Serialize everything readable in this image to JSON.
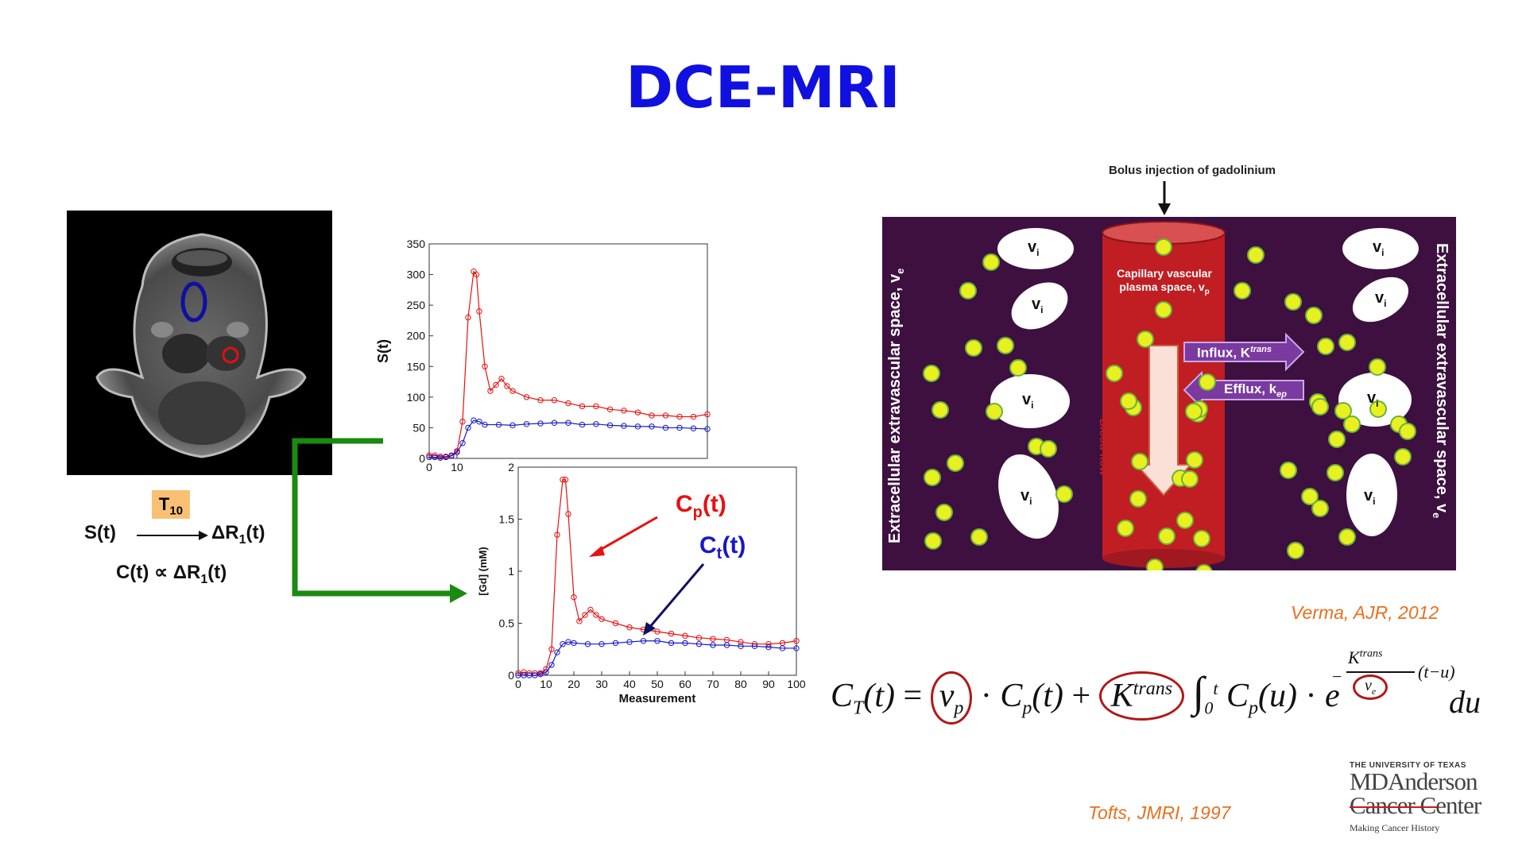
{
  "title": "DCE-MRI",
  "left_panel": {
    "t10_label": "T",
    "t10_sub": "10",
    "signal_eq": {
      "lhs": "S(t)",
      "rhs": "ΔR",
      "rhs_sub": "1",
      "rhs_tail": "(t)"
    },
    "proportional_eq": {
      "lhs": "C(t) ∝ ΔR",
      "sub": "1",
      "tail": "(t)"
    }
  },
  "colors": {
    "title": "#1010e0",
    "red": "#e81010",
    "blue": "#1818c8",
    "green": "#1a8a10",
    "citation": "#e8701e",
    "tissue": "#3d1040",
    "vessel": "#c01e22",
    "particle": "#e8f020"
  },
  "chart_data": [
    {
      "type": "line",
      "ylabel": "S(t)",
      "xlabel": "",
      "xticks": [
        "0",
        "10"
      ],
      "yticks": [
        "0",
        "50",
        "100",
        "150",
        "200",
        "250",
        "300",
        "350"
      ],
      "xlim": [
        0,
        100
      ],
      "ylim": [
        0,
        350
      ],
      "series": [
        {
          "name": "red",
          "color": "#e81010",
          "x": [
            0,
            2,
            4,
            6,
            8,
            10,
            12,
            14,
            16,
            17,
            18,
            20,
            22,
            24,
            26,
            28,
            30,
            35,
            40,
            45,
            50,
            55,
            60,
            65,
            70,
            75,
            80,
            85,
            90,
            95,
            100
          ],
          "values": [
            5,
            5,
            3,
            3,
            5,
            12,
            60,
            230,
            305,
            300,
            240,
            150,
            110,
            120,
            130,
            118,
            110,
            100,
            95,
            95,
            90,
            85,
            85,
            80,
            78,
            75,
            70,
            70,
            68,
            68,
            72
          ]
        },
        {
          "name": "blue",
          "color": "#1818c8",
          "x": [
            0,
            2,
            4,
            6,
            8,
            10,
            12,
            14,
            16,
            18,
            20,
            25,
            30,
            35,
            40,
            45,
            50,
            55,
            60,
            65,
            70,
            75,
            80,
            85,
            90,
            95,
            100
          ],
          "values": [
            2,
            2,
            1,
            2,
            4,
            10,
            25,
            50,
            62,
            60,
            55,
            55,
            54,
            56,
            57,
            58,
            58,
            55,
            56,
            54,
            53,
            52,
            52,
            50,
            50,
            49,
            48
          ]
        }
      ]
    },
    {
      "type": "line",
      "ylabel": "[Gd] (mM)",
      "xlabel": "Measurement",
      "xticks": [
        "0",
        "10",
        "20",
        "30",
        "40",
        "50",
        "60",
        "70",
        "80",
        "90",
        "100"
      ],
      "yticks": [
        "0",
        "0.5",
        "1",
        "1.5",
        "2"
      ],
      "xlim": [
        0,
        100
      ],
      "ylim": [
        0,
        2
      ],
      "series": [
        {
          "name": "C_p(t)",
          "color": "#e81010",
          "x": [
            0,
            2,
            4,
            6,
            8,
            10,
            12,
            14,
            16,
            17,
            18,
            20,
            22,
            24,
            26,
            28,
            30,
            35,
            40,
            45,
            50,
            55,
            60,
            65,
            70,
            75,
            80,
            85,
            90,
            95,
            100
          ],
          "values": [
            0.02,
            0.03,
            0.02,
            0.02,
            0.02,
            0.06,
            0.25,
            1.35,
            1.88,
            1.88,
            1.55,
            0.75,
            0.52,
            0.58,
            0.63,
            0.58,
            0.54,
            0.5,
            0.46,
            0.44,
            0.42,
            0.4,
            0.38,
            0.36,
            0.35,
            0.34,
            0.32,
            0.3,
            0.3,
            0.31,
            0.33
          ]
        },
        {
          "name": "C_t(t)",
          "color": "#1818c8",
          "x": [
            0,
            2,
            4,
            6,
            8,
            10,
            12,
            14,
            16,
            18,
            20,
            25,
            30,
            35,
            40,
            45,
            50,
            55,
            60,
            65,
            70,
            75,
            80,
            85,
            90,
            95,
            100
          ],
          "values": [
            0,
            0,
            0,
            0,
            0.01,
            0.03,
            0.1,
            0.22,
            0.3,
            0.32,
            0.31,
            0.3,
            0.3,
            0.31,
            0.32,
            0.33,
            0.33,
            0.31,
            0.31,
            0.3,
            0.29,
            0.29,
            0.28,
            0.28,
            0.27,
            0.26,
            0.26
          ]
        }
      ],
      "annotations": [
        {
          "text": "C",
          "sub": "p",
          "tail": "(t)",
          "color": "#e81010"
        },
        {
          "text": "C",
          "sub": "t",
          "tail": "(t)",
          "color": "#1818c8"
        }
      ]
    }
  ],
  "diagram": {
    "bolus_label": "Bolus injection of gadolinium",
    "left_side_label": "Extracellular extravascular space, v",
    "right_side_label": "Extracellular extravascular space, v",
    "side_sub": "e",
    "vessel_label_line1": "Capillary vascular",
    "vessel_label_line2": "plasma space, v",
    "vessel_sub": "p",
    "blood_flow": "Blood flow",
    "influx": "Influx, K",
    "influx_sup": "trans",
    "efflux": "Efflux, k",
    "efflux_sub": "ep",
    "cell_label": "v",
    "cell_sub": "i"
  },
  "citations": {
    "verma": "Verma, AJR, 2012",
    "tofts": "Tofts, JMRI, 1997"
  },
  "equation": {
    "c": "C",
    "c_sub": "T",
    "t_arg": "(t)",
    "eq": "=",
    "vp": "v",
    "vp_sub": "p",
    "dot": "·",
    "cp": "C",
    "cp_sub": "p",
    "plus": "+",
    "k": "K",
    "k_sup": "trans",
    "integral": "∫",
    "lower": "0",
    "upper": "t",
    "cpu": "(u)",
    "e": "e",
    "exp_minus": "−",
    "exp_k": "K",
    "exp_k_sup": "trans",
    "exp_ve": "v",
    "exp_ve_sub": "e",
    "exp_tail": "(t−u)",
    "du": "du"
  },
  "logo": {
    "line1": "THE UNIVERSITY OF TEXAS",
    "line2": "MDAnderson",
    "line3": "Cancer Center",
    "tagline": "Making Cancer History"
  }
}
